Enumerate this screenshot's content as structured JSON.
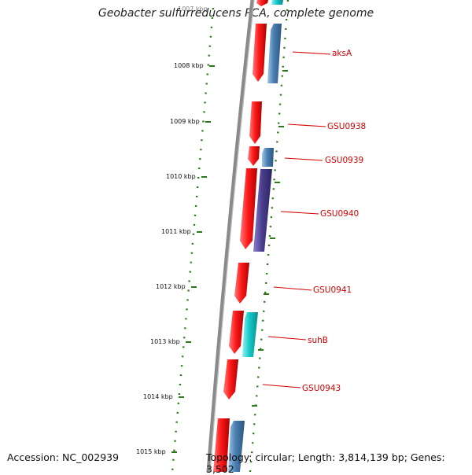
{
  "title": "Geobacter sulfurreducens PCA, complete genome",
  "footer": {
    "accession": "Accession: NC_002939",
    "topology": "Topology: circular; Length: 3,814,139 bp; Genes: 3,502"
  },
  "ticks": [
    "1007 kbp",
    "1008 kbp",
    "1009 kbp",
    "1010 kbp",
    "1011 kbp",
    "1012 kbp",
    "1013 kbp",
    "1014 kbp",
    "1015 kbp"
  ],
  "genes": [
    {
      "label": "aksA"
    },
    {
      "label": "GSU0938"
    },
    {
      "label": "GSU0939"
    },
    {
      "label": "GSU0940"
    },
    {
      "label": "GSU0941"
    },
    {
      "label": "suhB"
    },
    {
      "label": "GSU0943"
    }
  ],
  "colors": {
    "backbone": "#8a8a8a",
    "tick": "#2a7a1a",
    "forward_gene": "#ff1a1a",
    "reverse_gene_blue": "#4a7fb0",
    "reverse_gene_purple": "#4b3f8f",
    "reverse_gene_cyan": "#14c8c8",
    "label": "#d40000"
  }
}
